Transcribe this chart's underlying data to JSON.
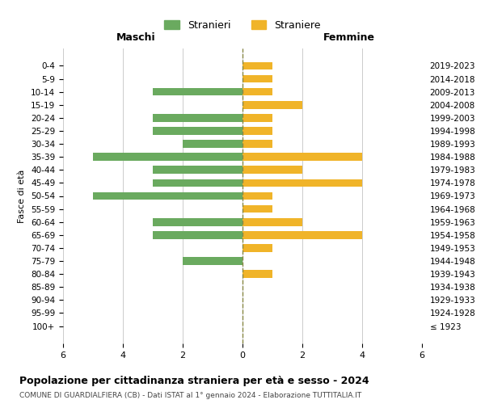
{
  "age_groups": [
    "100+",
    "95-99",
    "90-94",
    "85-89",
    "80-84",
    "75-79",
    "70-74",
    "65-69",
    "60-64",
    "55-59",
    "50-54",
    "45-49",
    "40-44",
    "35-39",
    "30-34",
    "25-29",
    "20-24",
    "15-19",
    "10-14",
    "5-9",
    "0-4"
  ],
  "birth_years": [
    "≤ 1923",
    "1924-1928",
    "1929-1933",
    "1934-1938",
    "1939-1943",
    "1944-1948",
    "1949-1953",
    "1954-1958",
    "1959-1963",
    "1964-1968",
    "1969-1973",
    "1974-1978",
    "1979-1983",
    "1984-1988",
    "1989-1993",
    "1994-1998",
    "1999-2003",
    "2004-2008",
    "2009-2013",
    "2014-2018",
    "2019-2023"
  ],
  "maschi": [
    0,
    0,
    0,
    0,
    0,
    2,
    0,
    3,
    3,
    0,
    5,
    3,
    3,
    5,
    2,
    3,
    3,
    0,
    3,
    0,
    0
  ],
  "femmine": [
    0,
    0,
    0,
    0,
    1,
    0,
    1,
    4,
    2,
    1,
    1,
    4,
    2,
    4,
    1,
    1,
    1,
    2,
    1,
    1,
    1
  ],
  "color_maschi": "#6aaa5f",
  "color_femmine": "#f0b429",
  "xlim": 6,
  "title": "Popolazione per cittadinanza straniera per età e sesso - 2024",
  "subtitle": "COMUNE DI GUARDIALFIERA (CB) - Dati ISTAT al 1° gennaio 2024 - Elaborazione TUTTITALIA.IT",
  "ylabel_left": "Fasce di età",
  "xlabel_left": "Maschi",
  "xlabel_right": "Femmine",
  "legend_stranieri": "Stranieri",
  "legend_straniere": "Straniere",
  "bg_color": "#ffffff",
  "grid_color": "#cccccc",
  "dashed_line_color": "#888844"
}
